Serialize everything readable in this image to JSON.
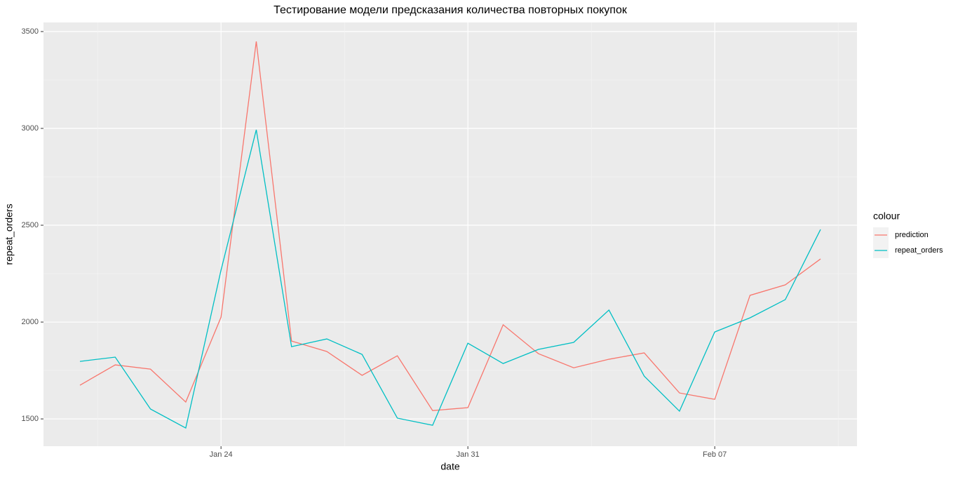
{
  "chart_data": {
    "type": "line",
    "title": "Тестирование модели предсказания количества повторных покупок",
    "x_label": "date",
    "y_label": "repeat_orders",
    "categories": [
      null,
      null,
      null,
      null,
      "Jan 24",
      null,
      null,
      null,
      null,
      null,
      null,
      "Jan 31",
      null,
      null,
      null,
      null,
      null,
      null,
      "Feb 07",
      null,
      null,
      null
    ],
    "series": [
      {
        "name": "prediction",
        "color": "#f8766d",
        "values": [
          1674,
          1779,
          1757,
          1587,
          2025,
          3449,
          1902,
          1848,
          1725,
          1826,
          1543,
          1558,
          1986,
          1837,
          1764,
          1808,
          1841,
          1634,
          1601,
          2138,
          2192,
          2326
        ]
      },
      {
        "name": "repeat_orders",
        "color": "#00bfc4",
        "values": [
          1797,
          1819,
          1551,
          1453,
          2268,
          2993,
          1873,
          1913,
          1833,
          1504,
          1467,
          1891,
          1786,
          1859,
          1895,
          2062,
          1721,
          1540,
          1949,
          2022,
          2116,
          2478
        ]
      }
    ],
    "legend_title": "colour",
    "legend_position": "right",
    "ylim": [
      1359,
      3547
    ],
    "yticks": [
      1500,
      2000,
      2500,
      3000,
      3500
    ],
    "grid": true
  }
}
